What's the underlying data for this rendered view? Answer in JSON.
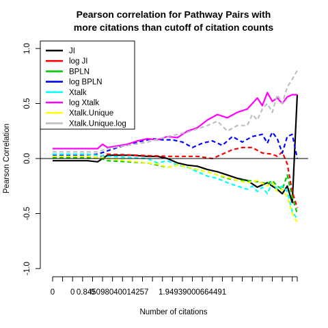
{
  "chart_data": {
    "type": "line",
    "title": [
      "Pearson correlation for Pathway Pairs with",
      "more citations than cutoff of citation counts"
    ],
    "xlabel": "Number of citations",
    "ylabel": "Pearson Correlation",
    "ylim": [
      -1.0,
      1.0
    ],
    "yticks": [
      -1.0,
      -0.5,
      0.0,
      0.5,
      1.0
    ],
    "ytick_labels": [
      "-1.0",
      "-0.5",
      "0.0",
      "0.5",
      "1.0"
    ],
    "xtick_labels": [
      "0",
      "0",
      "0",
      "0.845098040014257",
      "1.94939000664491"
    ],
    "x_index_range": [
      1,
      50
    ],
    "reference_line_y": 0,
    "legend_position": "top-left",
    "series": [
      {
        "name": "JI",
        "color": "#000000",
        "dash": "solid",
        "points": [
          [
            1,
            -0.02
          ],
          [
            8,
            -0.02
          ],
          [
            10,
            -0.03
          ],
          [
            12,
            0.03
          ],
          [
            17,
            0.03
          ],
          [
            20,
            0.02
          ],
          [
            22,
            0.02
          ],
          [
            24,
            0.0
          ],
          [
            26,
            -0.04
          ],
          [
            28,
            -0.06
          ],
          [
            30,
            -0.07
          ],
          [
            32,
            -0.1
          ],
          [
            34,
            -0.12
          ],
          [
            36,
            -0.15
          ],
          [
            38,
            -0.18
          ],
          [
            40,
            -0.2
          ],
          [
            42,
            -0.26
          ],
          [
            44,
            -0.22
          ],
          [
            46,
            -0.28
          ],
          [
            47,
            -0.32
          ],
          [
            48,
            -0.25
          ],
          [
            49,
            -0.4
          ],
          [
            50,
            0.58
          ]
        ]
      },
      {
        "name": "log JI",
        "color": "#ff0000",
        "dash": "dashed",
        "points": [
          [
            1,
            0.02
          ],
          [
            8,
            0.02
          ],
          [
            10,
            0.01
          ],
          [
            12,
            0.04
          ],
          [
            18,
            0.03
          ],
          [
            24,
            0.02
          ],
          [
            30,
            0.02
          ],
          [
            33,
            0.0
          ],
          [
            35,
            0.04
          ],
          [
            37,
            0.08
          ],
          [
            39,
            0.1
          ],
          [
            41,
            0.1
          ],
          [
            43,
            0.05
          ],
          [
            45,
            0.04
          ],
          [
            46,
            0.02
          ],
          [
            47,
            0.06
          ],
          [
            48,
            -0.05
          ],
          [
            49,
            -0.3
          ],
          [
            50,
            -0.45
          ]
        ]
      },
      {
        "name": "BPLN",
        "color": "#00cc00",
        "dash": "dashed",
        "points": [
          [
            1,
            0.01
          ],
          [
            10,
            0.01
          ],
          [
            12,
            -0.02
          ],
          [
            16,
            -0.03
          ],
          [
            20,
            -0.04
          ],
          [
            22,
            -0.06
          ],
          [
            24,
            -0.08
          ],
          [
            26,
            -0.06
          ],
          [
            28,
            -0.08
          ],
          [
            30,
            -0.1
          ],
          [
            32,
            -0.12
          ],
          [
            34,
            -0.15
          ],
          [
            36,
            -0.18
          ],
          [
            38,
            -0.2
          ],
          [
            40,
            -0.2
          ],
          [
            42,
            -0.21
          ],
          [
            44,
            -0.23
          ],
          [
            45,
            -0.2
          ],
          [
            46,
            -0.25
          ],
          [
            47,
            -0.28
          ],
          [
            48,
            -0.15
          ],
          [
            49,
            -0.35
          ],
          [
            50,
            -0.5
          ]
        ]
      },
      {
        "name": "log BPLN",
        "color": "#0000ff",
        "dash": "dashed",
        "points": [
          [
            1,
            0.03
          ],
          [
            6,
            0.03
          ],
          [
            10,
            0.04
          ],
          [
            14,
            0.1
          ],
          [
            18,
            0.15
          ],
          [
            21,
            0.18
          ],
          [
            23,
            0.17
          ],
          [
            25,
            0.17
          ],
          [
            27,
            0.15
          ],
          [
            29,
            0.1
          ],
          [
            31,
            0.14
          ],
          [
            33,
            0.16
          ],
          [
            35,
            0.12
          ],
          [
            37,
            0.2
          ],
          [
            39,
            0.15
          ],
          [
            41,
            0.2
          ],
          [
            43,
            0.22
          ],
          [
            44,
            0.14
          ],
          [
            45,
            0.24
          ],
          [
            46,
            0.18
          ],
          [
            47,
            0.05
          ],
          [
            48,
            0.2
          ],
          [
            49,
            0.22
          ],
          [
            50,
            0.0
          ]
        ]
      },
      {
        "name": "Xtalk",
        "color": "#00ffff",
        "dash": "dashed",
        "points": [
          [
            1,
            0.04
          ],
          [
            8,
            0.04
          ],
          [
            10,
            0.03
          ],
          [
            12,
            0.02
          ],
          [
            16,
            0.01
          ],
          [
            20,
            0.0
          ],
          [
            22,
            -0.04
          ],
          [
            24,
            -0.02
          ],
          [
            26,
            -0.06
          ],
          [
            28,
            -0.08
          ],
          [
            30,
            -0.12
          ],
          [
            32,
            -0.16
          ],
          [
            34,
            -0.18
          ],
          [
            36,
            -0.22
          ],
          [
            38,
            -0.25
          ],
          [
            40,
            -0.28
          ],
          [
            41,
            -0.25
          ],
          [
            42,
            -0.3
          ],
          [
            43,
            -0.26
          ],
          [
            44,
            -0.32
          ],
          [
            45,
            -0.22
          ],
          [
            46,
            -0.28
          ],
          [
            47,
            -0.25
          ],
          [
            48,
            -0.3
          ],
          [
            49,
            -0.48
          ],
          [
            50,
            -0.55
          ]
        ]
      },
      {
        "name": "log Xtalk",
        "color": "#ff00ff",
        "dash": "solid",
        "points": [
          [
            1,
            0.09
          ],
          [
            10,
            0.09
          ],
          [
            11,
            0.13
          ],
          [
            12,
            0.1
          ],
          [
            16,
            0.13
          ],
          [
            18,
            0.16
          ],
          [
            20,
            0.18
          ],
          [
            22,
            0.17
          ],
          [
            24,
            0.2
          ],
          [
            26,
            0.19
          ],
          [
            28,
            0.25
          ],
          [
            30,
            0.28
          ],
          [
            32,
            0.35
          ],
          [
            34,
            0.4
          ],
          [
            36,
            0.37
          ],
          [
            38,
            0.42
          ],
          [
            40,
            0.45
          ],
          [
            41,
            0.5
          ],
          [
            42,
            0.55
          ],
          [
            43,
            0.48
          ],
          [
            44,
            0.6
          ],
          [
            45,
            0.52
          ],
          [
            46,
            0.55
          ],
          [
            47,
            0.5
          ],
          [
            48,
            0.56
          ],
          [
            49,
            0.58
          ],
          [
            50,
            0.58
          ]
        ]
      },
      {
        "name": "Xtalk.Unique",
        "color": "#ffff00",
        "dash": "dashed",
        "points": [
          [
            1,
            0.02
          ],
          [
            8,
            0.02
          ],
          [
            10,
            0.01
          ],
          [
            12,
            0.0
          ],
          [
            16,
            -0.02
          ],
          [
            20,
            -0.04
          ],
          [
            22,
            -0.05
          ],
          [
            24,
            -0.08
          ],
          [
            26,
            -0.06
          ],
          [
            28,
            -0.08
          ],
          [
            30,
            -0.1
          ],
          [
            32,
            -0.12
          ],
          [
            34,
            -0.15
          ],
          [
            36,
            -0.17
          ],
          [
            38,
            -0.2
          ],
          [
            40,
            -0.22
          ],
          [
            42,
            -0.2
          ],
          [
            44,
            -0.25
          ],
          [
            45,
            -0.22
          ],
          [
            46,
            -0.3
          ],
          [
            47,
            -0.28
          ],
          [
            48,
            -0.35
          ],
          [
            49,
            -0.5
          ],
          [
            50,
            -0.58
          ]
        ]
      },
      {
        "name": "Xtalk.Unique.log",
        "color": "#bebebe",
        "dash": "dashed",
        "points": [
          [
            1,
            0.06
          ],
          [
            10,
            0.06
          ],
          [
            12,
            0.09
          ],
          [
            16,
            0.12
          ],
          [
            20,
            0.15
          ],
          [
            24,
            0.2
          ],
          [
            28,
            0.24
          ],
          [
            30,
            0.27
          ],
          [
            32,
            0.3
          ],
          [
            34,
            0.34
          ],
          [
            36,
            0.25
          ],
          [
            38,
            0.3
          ],
          [
            40,
            0.3
          ],
          [
            41,
            0.4
          ],
          [
            42,
            0.35
          ],
          [
            43,
            0.45
          ],
          [
            44,
            0.5
          ],
          [
            45,
            0.42
          ],
          [
            46,
            0.58
          ],
          [
            47,
            0.5
          ],
          [
            48,
            0.65
          ],
          [
            49,
            0.72
          ],
          [
            50,
            0.8
          ]
        ]
      }
    ]
  }
}
